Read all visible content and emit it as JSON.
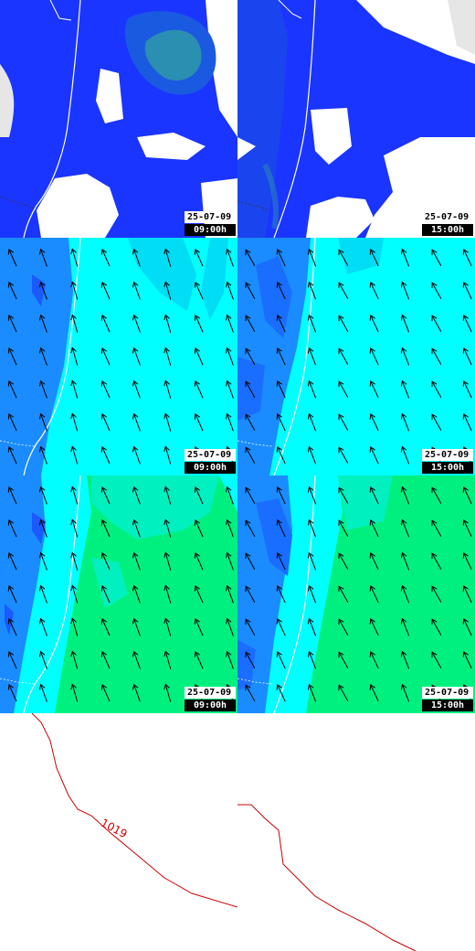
{
  "colors": {
    "clouds_light": "#e6e6e6",
    "clouds_mid": "#1a35ff",
    "clouds_dark": "#0f28f5",
    "clouds_core": "#2a8fb0",
    "wind_blue": "#1a8cff",
    "wind_cyan": "#00ffff",
    "wind_green": "#00f080",
    "coast": "#ffffff",
    "isobar": "#cc0000",
    "arrow": "#000000"
  },
  "panels": [
    {
      "id": "clouds-0900",
      "layer": "clouds",
      "date": "25-07-09",
      "time": "09:00h"
    },
    {
      "id": "clouds-1500",
      "layer": "clouds",
      "date": "25-07-09",
      "time": "15:00h"
    },
    {
      "id": "wind-0900",
      "layer": "wind",
      "date": "25-07-09",
      "time": "09:00h"
    },
    {
      "id": "wind-1500",
      "layer": "wind",
      "date": "25-07-09",
      "time": "15:00h"
    },
    {
      "id": "gust-0900",
      "layer": "gust",
      "date": "25-07-09",
      "time": "09:00h"
    },
    {
      "id": "gust-1500",
      "layer": "gust",
      "date": "25-07-09",
      "time": "15:00h"
    }
  ],
  "isobars": [
    {
      "panel": "pressure-0900",
      "value": "1019"
    },
    {
      "panel": "pressure-1500",
      "value": ""
    }
  ]
}
